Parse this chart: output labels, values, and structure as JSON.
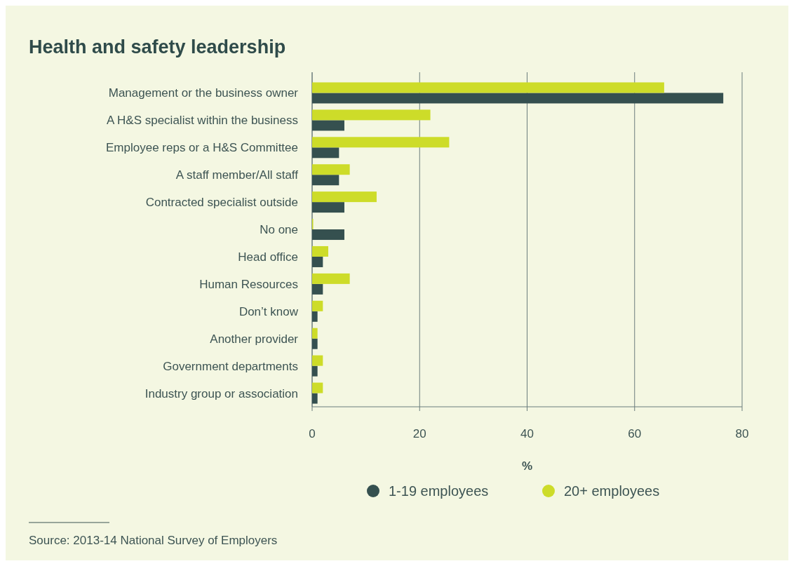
{
  "chart_data": {
    "type": "bar",
    "orientation": "horizontal",
    "title": "Health and safety leadership",
    "xlabel": "%",
    "categories": [
      "Management or the business owner",
      "A H&S specialist within the business",
      "Employee reps or a H&S Committee",
      "A staff member/All staff",
      "Contracted specialist outside",
      "No one",
      "Head office",
      "Human Resources",
      "Don’t know",
      "Another provider",
      "Government departments",
      "Industry group or association"
    ],
    "series": [
      {
        "name": "1-19 employees",
        "color": "#35504f",
        "values": [
          76.5,
          6,
          5,
          5,
          6,
          6,
          2,
          2,
          1,
          1,
          1,
          1
        ]
      },
      {
        "name": "20+ employees",
        "color": "#cddc29",
        "values": [
          65.5,
          22,
          25.5,
          7,
          12,
          0.2,
          3,
          7,
          2,
          1,
          2,
          2
        ]
      }
    ],
    "xlim": [
      0,
      80
    ],
    "xticks": [
      0,
      20,
      40,
      60,
      80
    ],
    "grid": "x",
    "legend": "bottom",
    "annotations": [
      "Source: 2013-14 National Survey of Employers"
    ]
  }
}
